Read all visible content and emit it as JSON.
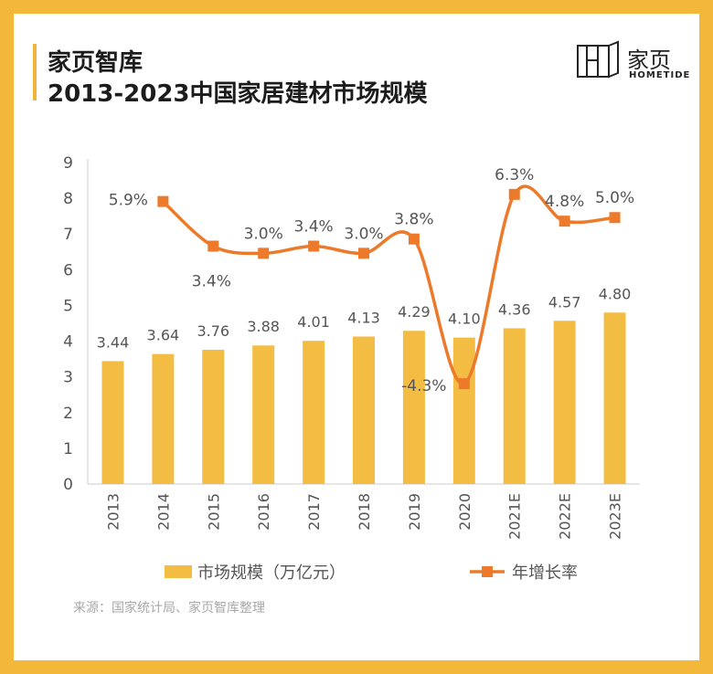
{
  "header": {
    "brand": "家页智库",
    "title": "2013-2023中国家居建材市场规模"
  },
  "logo": {
    "cn": "家页",
    "en": "HOMETIDE"
  },
  "source": "来源：国家统计局、家页智库整理",
  "colors": {
    "bar": "#f3bd43",
    "line": "#ec7a2a",
    "frame": "#f3b73a",
    "axis": "#cccccc",
    "text": "#555555"
  },
  "chart_data": {
    "type": "bar",
    "categories": [
      "2013",
      "2014",
      "2015",
      "2016",
      "2017",
      "2018",
      "2019",
      "2020",
      "2021E",
      "2022E",
      "2023E"
    ],
    "ylim": [
      0,
      9
    ],
    "yticks": [
      "0",
      "1",
      "2",
      "3",
      "4",
      "5",
      "6",
      "7",
      "8",
      "9"
    ],
    "series": [
      {
        "name": "市场规模（万亿元）",
        "type": "bar",
        "values": [
          3.44,
          3.64,
          3.76,
          3.88,
          4.01,
          4.13,
          4.29,
          4.1,
          4.36,
          4.57,
          4.8
        ],
        "labels": [
          "3.44",
          "3.64",
          "3.76",
          "3.88",
          "4.01",
          "4.13",
          "4.29",
          "4.10",
          "4.36",
          "4.57",
          "4.80"
        ]
      },
      {
        "name": "年增长率",
        "type": "line",
        "x": [
          "2014",
          "2015",
          "2016",
          "2017",
          "2018",
          "2019",
          "2020",
          "2021E",
          "2022E",
          "2023E"
        ],
        "values": [
          5.9,
          3.4,
          3.0,
          3.4,
          3.0,
          3.8,
          -4.3,
          6.3,
          4.8,
          5.0
        ],
        "labels": [
          "5.9%",
          "3.4%",
          "3.0%",
          "3.4%",
          "3.0%",
          "3.8%",
          "-4.3%",
          "6.3%",
          "4.8%",
          "5.0%"
        ]
      }
    ],
    "legend": "bottom"
  }
}
